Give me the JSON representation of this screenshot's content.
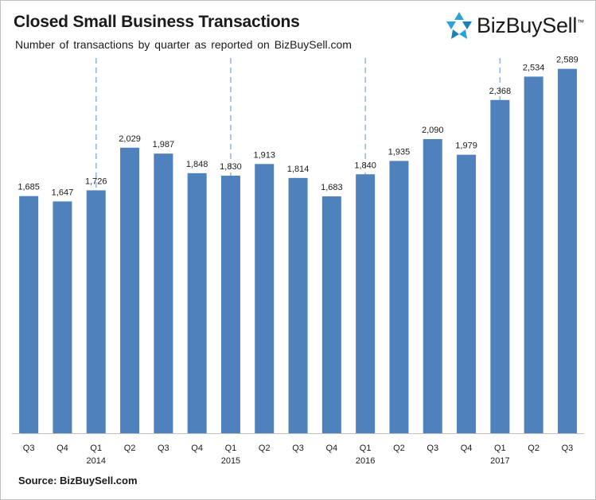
{
  "title": "Closed Small Business Transactions",
  "subtitle": "Number of transactions by quarter as reported on BizBuySell.com",
  "source": "Source: BizBuySell.com",
  "logo": {
    "text": "BizBuySell",
    "trademark": "™",
    "icon": "bizbuysell-logo-icon"
  },
  "colors": {
    "bar": "#4f81bd",
    "divider": "#8eb4e3",
    "axis": "#bfbfbf"
  },
  "chart_data": {
    "type": "bar",
    "title": "Closed Small Business Transactions",
    "subtitle": "Number of transactions by quarter as reported on BizBuySell.com",
    "categories": [
      "Q3",
      "Q4",
      "Q1",
      "Q2",
      "Q3",
      "Q4",
      "Q1",
      "Q2",
      "Q3",
      "Q4",
      "Q1",
      "Q2",
      "Q3",
      "Q4",
      "Q1",
      "Q2",
      "Q3"
    ],
    "year_labels": [
      "",
      "",
      "2014",
      "",
      "",
      "",
      "2015",
      "",
      "",
      "",
      "2016",
      "",
      "",
      "",
      "2017",
      "",
      ""
    ],
    "values": [
      1685,
      1647,
      1726,
      2029,
      1987,
      1848,
      1830,
      1913,
      1814,
      1683,
      1840,
      1935,
      2090,
      1979,
      2368,
      2534,
      2589
    ],
    "value_labels": [
      "1,685",
      "1,647",
      "1,726",
      "2,029",
      "1,987",
      "1,848",
      "1,830",
      "1,913",
      "1,814",
      "1,683",
      "1,840",
      "1,935",
      "2,090",
      "1,979",
      "2,368",
      "2,534",
      "2,589"
    ],
    "year_dividers_before": [
      "2014",
      "2015",
      "2016",
      "2017"
    ],
    "ylim": [
      0,
      2700
    ],
    "xlabel": "",
    "ylabel": "",
    "grid": false,
    "legend": "none"
  }
}
